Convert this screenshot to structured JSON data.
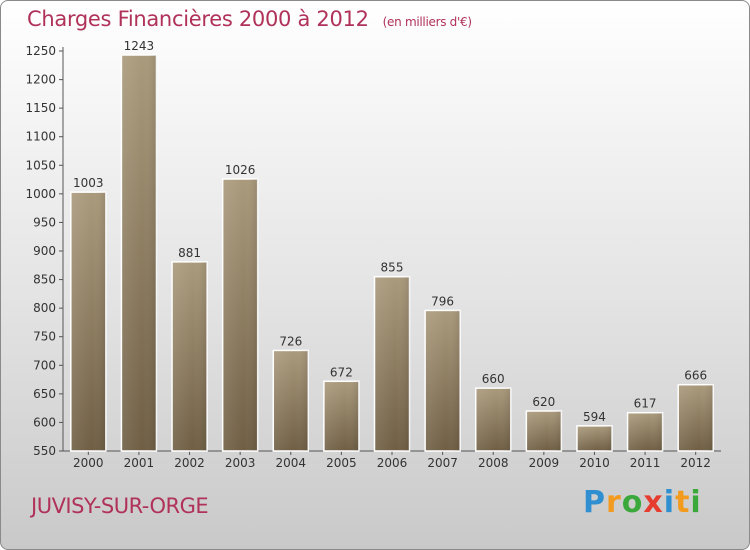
{
  "chart_data": {
    "type": "bar",
    "title": "Charges Financières 2000 à 2012",
    "subtitle": "(en milliers d'€)",
    "categories": [
      "2000",
      "2001",
      "2002",
      "2003",
      "2004",
      "2005",
      "2006",
      "2007",
      "2008",
      "2009",
      "2010",
      "2011",
      "2012"
    ],
    "values": [
      1003,
      1243,
      881,
      1026,
      726,
      672,
      855,
      796,
      660,
      620,
      594,
      617,
      666
    ],
    "ylim": [
      550,
      1250
    ],
    "yticks": [
      550,
      600,
      650,
      700,
      750,
      800,
      850,
      900,
      950,
      1000,
      1050,
      1100,
      1150,
      1200,
      1250
    ],
    "grid": false,
    "bar_color": "#8e7a5c"
  },
  "footer": {
    "city": "JUVISY-SUR-ORGE",
    "logo": "Proxiti",
    "logo_colors": [
      "#2f8fd0",
      "#f39b1e",
      "#3aa83a",
      "#e63c2f",
      "#2f8fd0",
      "#f39b1e",
      "#3aa83a"
    ]
  }
}
